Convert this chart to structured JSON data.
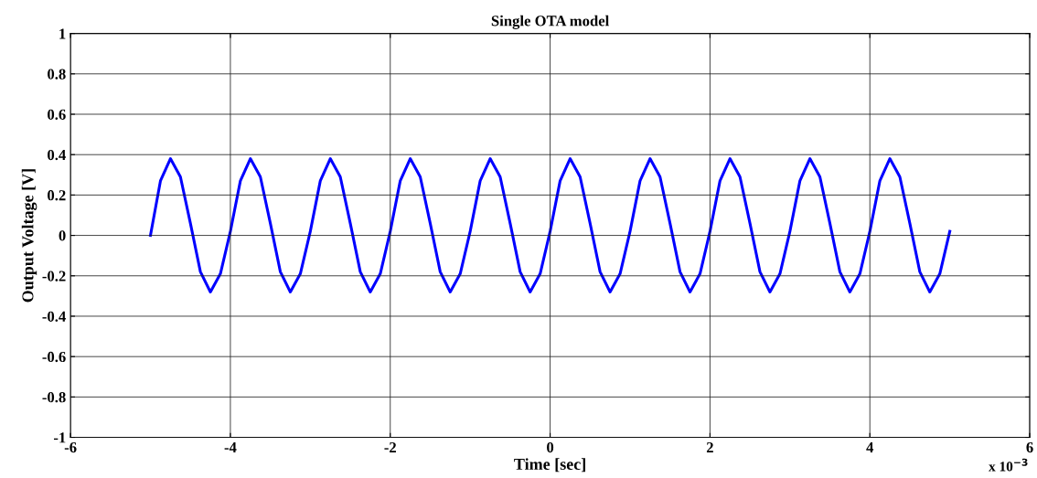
{
  "chart_data": {
    "type": "line",
    "title": "Single OTA model",
    "xlabel": "Time [sec]",
    "ylabel": "Output Voltage [V]",
    "annotations": [
      "x 10$^{−3}$"
    ],
    "x": [
      -5,
      -4.875,
      -4.75,
      -4.625,
      -4.5,
      -4.375,
      -4.25,
      -4.125,
      -4,
      -3.875,
      -3.75,
      -3.625,
      -3.5,
      -3.375,
      -3.25,
      -3.125,
      -3,
      -2.875,
      -2.75,
      -2.625,
      -2.5,
      -2.375,
      -2.25,
      -2.125,
      -2,
      -1.875,
      -1.75,
      -1.625,
      -1.5,
      -1.375,
      -1.25,
      -1.125,
      -1,
      -0.875,
      -0.75,
      -0.625,
      -0.5,
      -0.375,
      -0.25,
      -0.125,
      0,
      0.125,
      0.25,
      0.375,
      0.5,
      0.625,
      0.75,
      0.875,
      1,
      1.125,
      1.25,
      1.375,
      1.5,
      1.625,
      1.75,
      1.875,
      2,
      2.125,
      2.25,
      2.375,
      2.5,
      2.625,
      2.75,
      2.875,
      3,
      3.125,
      3.25,
      3.375,
      3.5,
      3.625,
      3.75,
      3.875,
      4,
      4.125,
      4.25,
      4.375,
      4.5,
      4.625,
      4.75,
      4.875,
      5
    ],
    "series": [
      {
        "color": "#0000ff",
        "values": [
          0.0,
          0.27,
          0.38,
          0.29,
          0.06,
          -0.18,
          -0.28,
          -0.19,
          0.02,
          0.27,
          0.38,
          0.29,
          0.06,
          -0.18,
          -0.28,
          -0.19,
          0.02,
          0.27,
          0.38,
          0.29,
          0.06,
          -0.18,
          -0.28,
          -0.19,
          0.02,
          0.27,
          0.38,
          0.29,
          0.06,
          -0.18,
          -0.28,
          -0.19,
          0.02,
          0.27,
          0.38,
          0.29,
          0.06,
          -0.18,
          -0.28,
          -0.19,
          0.02,
          0.27,
          0.38,
          0.29,
          0.06,
          -0.18,
          -0.28,
          -0.19,
          0.02,
          0.27,
          0.38,
          0.29,
          0.06,
          -0.18,
          -0.28,
          -0.19,
          0.02,
          0.27,
          0.38,
          0.29,
          0.06,
          -0.18,
          -0.28,
          -0.19,
          0.02,
          0.27,
          0.38,
          0.29,
          0.06,
          -0.18,
          -0.28,
          -0.19,
          0.02,
          0.27,
          0.38,
          0.29,
          0.06,
          -0.18,
          -0.28,
          -0.19,
          0.02
        ]
      }
    ],
    "xlim": [
      -6,
      6
    ],
    "xticks": [
      -6,
      -4,
      -2,
      0,
      2,
      4,
      6
    ],
    "ylim": [
      -1,
      1
    ],
    "yticks": [
      -1,
      -0.8,
      -0.6,
      -0.4,
      -0.2,
      0,
      0.2,
      0.4,
      0.6,
      0.8,
      1
    ],
    "grid": true,
    "legend": false,
    "marker": "none",
    "line_style": "solid"
  }
}
